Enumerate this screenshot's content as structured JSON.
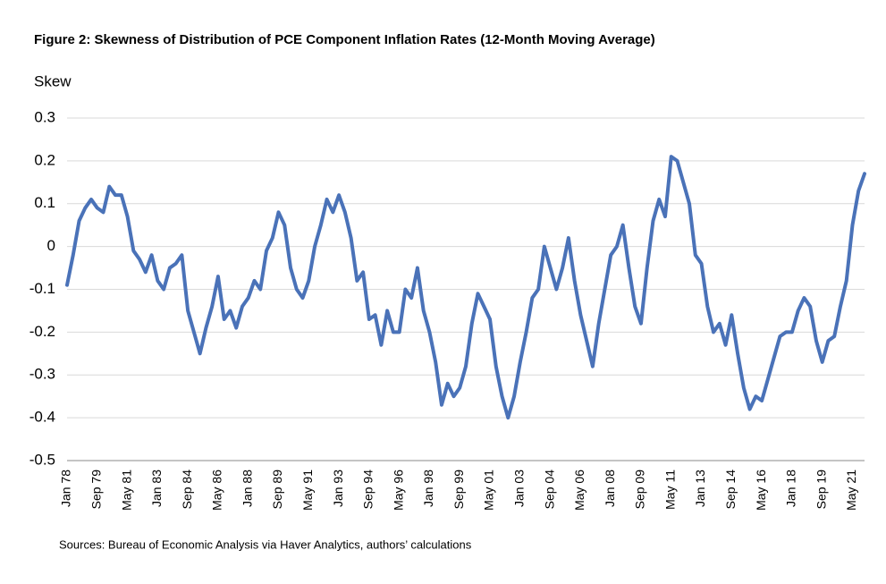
{
  "chart_data": {
    "type": "line",
    "title": "Figure 2: Skewness of Distribution of PCE Component Inflation Rates (12-Month Moving Average)",
    "y_label": "Skew",
    "source": "Sources: Bureau of Economic Analysis via Haver Analytics, authors’ calculations",
    "color": "#4a72b8",
    "categories": [
      "Jan 78",
      null,
      null,
      null,
      null,
      "Sep 79",
      null,
      null,
      null,
      null,
      "May 81",
      null,
      null,
      null,
      null,
      "Jan 83",
      null,
      null,
      null,
      null,
      "Sep 84",
      null,
      null,
      null,
      null,
      "May 86",
      null,
      null,
      null,
      null,
      "Jan 88",
      null,
      null,
      null,
      null,
      "Sep 89",
      null,
      null,
      null,
      null,
      "May 91",
      null,
      null,
      null,
      null,
      "Jan 93",
      null,
      null,
      null,
      null,
      "Sep 94",
      null,
      null,
      null,
      null,
      "May 96",
      null,
      null,
      null,
      null,
      "Jan 98",
      null,
      null,
      null,
      null,
      "Sep 99",
      null,
      null,
      null,
      null,
      "May 01",
      null,
      null,
      null,
      null,
      "Jan 03",
      null,
      null,
      null,
      null,
      "Sep 04",
      null,
      null,
      null,
      null,
      "May 06",
      null,
      null,
      null,
      null,
      "Jan 08",
      null,
      null,
      null,
      null,
      "Sep 09",
      null,
      null,
      null,
      null,
      "May 11",
      null,
      null,
      null,
      null,
      "Jan 13",
      null,
      null,
      null,
      null,
      "Sep 14",
      null,
      null,
      null,
      null,
      "May 16",
      null,
      null,
      null,
      null,
      "Jan 18",
      null,
      null,
      null,
      null,
      "Sep 19",
      null,
      null,
      null,
      null,
      "May 21",
      null,
      null
    ],
    "values": [
      -0.09,
      -0.02,
      0.06,
      0.09,
      0.11,
      0.09,
      0.08,
      0.14,
      0.12,
      0.12,
      0.07,
      -0.01,
      -0.03,
      -0.06,
      -0.02,
      -0.08,
      -0.1,
      -0.05,
      -0.04,
      -0.02,
      -0.15,
      -0.2,
      -0.25,
      -0.19,
      -0.14,
      -0.07,
      -0.17,
      -0.15,
      -0.19,
      -0.14,
      -0.12,
      -0.08,
      -0.1,
      -0.01,
      0.02,
      0.08,
      0.05,
      -0.05,
      -0.1,
      -0.12,
      -0.08,
      0.0,
      0.05,
      0.11,
      0.08,
      0.12,
      0.08,
      0.02,
      -0.08,
      -0.06,
      -0.17,
      -0.16,
      -0.23,
      -0.15,
      -0.2,
      -0.2,
      -0.1,
      -0.12,
      -0.05,
      -0.15,
      -0.2,
      -0.27,
      -0.37,
      -0.32,
      -0.35,
      -0.33,
      -0.28,
      -0.18,
      -0.11,
      -0.14,
      -0.17,
      -0.28,
      -0.35,
      -0.4,
      -0.35,
      -0.27,
      -0.2,
      -0.12,
      -0.1,
      0.0,
      -0.05,
      -0.1,
      -0.05,
      0.02,
      -0.08,
      -0.16,
      -0.22,
      -0.28,
      -0.18,
      -0.1,
      -0.02,
      0.0,
      0.05,
      -0.05,
      -0.14,
      -0.18,
      -0.05,
      0.06,
      0.11,
      0.07,
      0.21,
      0.2,
      0.15,
      0.1,
      -0.02,
      -0.04,
      -0.14,
      -0.2,
      -0.18,
      -0.23,
      -0.16,
      -0.25,
      -0.33,
      -0.38,
      -0.35,
      -0.36,
      -0.31,
      -0.26,
      -0.21,
      -0.2,
      -0.2,
      -0.15,
      -0.12,
      -0.14,
      -0.22,
      -0.27,
      -0.22,
      -0.21,
      -0.14,
      -0.08,
      0.05,
      0.13,
      0.17
    ],
    "ylim": [
      -0.5,
      0.3
    ],
    "yticks": [
      0.3,
      0.2,
      0.1,
      0,
      -0.1,
      -0.2,
      -0.3,
      -0.4,
      -0.5
    ],
    "grid": true
  }
}
